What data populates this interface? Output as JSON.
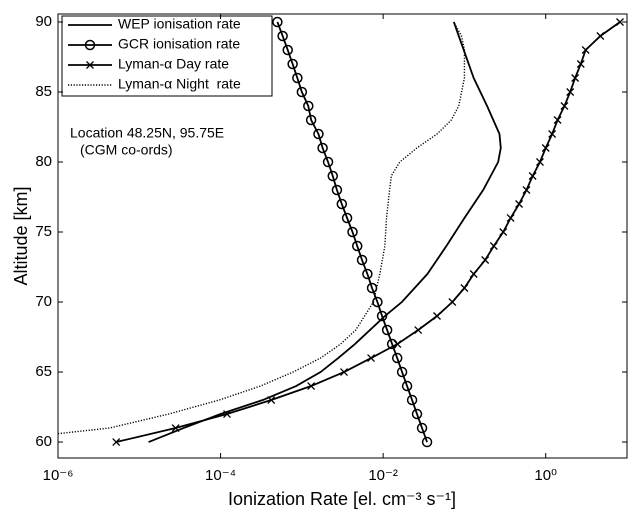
{
  "chart_data": {
    "type": "line",
    "x_label": "Ionization Rate [el. cm⁻³ s⁻¹]",
    "y_label": "Altitude [km]",
    "annotations": [
      "Location 48.25N, 95.75E",
      "(CGM co-ords)"
    ],
    "xscale": "log",
    "xlim": [
      1e-06,
      10
    ],
    "xticks": [
      {
        "value": 1e-06,
        "label": "10⁻⁶"
      },
      {
        "value": 0.0001,
        "label": "10⁻⁴"
      },
      {
        "value": 0.01,
        "label": "10⁻²"
      },
      {
        "value": 1,
        "label": "10⁰"
      }
    ],
    "ylim": [
      58.86,
      90.57
    ],
    "yticks": [
      60,
      65,
      70,
      75,
      80,
      85,
      90
    ],
    "grid": false,
    "legend": "upper-left",
    "series": [
      {
        "name": "WEP ionisation rate",
        "color": "#000000",
        "marker": "none",
        "dash": "solid",
        "x": [
          1.3e-05,
          3.5e-05,
          0.0001,
          0.00033,
          0.00085,
          0.0017,
          0.0028,
          0.0045,
          0.0105,
          0.017,
          0.035,
          0.06,
          0.1,
          0.17,
          0.26,
          0.28,
          0.27,
          0.19,
          0.13,
          0.098,
          0.074
        ],
        "y": [
          60,
          61,
          62,
          63,
          64,
          65,
          66,
          67,
          69,
          70,
          72,
          74,
          76,
          78,
          80,
          81,
          82,
          84,
          86,
          88,
          90
        ]
      },
      {
        "name": "GCR ionisation rate",
        "color": "#000000",
        "marker": "circle",
        "dash": "solid",
        "x": [
          0.0347,
          0.0301,
          0.0261,
          0.0227,
          0.0197,
          0.0171,
          0.0149,
          0.0129,
          0.0112,
          0.0097,
          0.0085,
          0.0073,
          0.0064,
          0.0055,
          0.0048,
          0.0042,
          0.0036,
          0.0031,
          0.0027,
          0.0024,
          0.0021,
          0.0018,
          0.0016,
          0.0013,
          0.0012,
          0.001,
          0.00088,
          0.00077,
          0.00067,
          0.00058,
          0.0005
        ],
        "y": [
          60,
          61,
          62,
          63,
          64,
          65,
          66,
          67,
          68,
          69,
          70,
          71,
          72,
          73,
          74,
          75,
          76,
          77,
          78,
          79,
          80,
          81,
          82,
          83,
          84,
          85,
          86,
          87,
          88,
          89,
          90
        ]
      },
      {
        "name": "Lyman-α Day rate",
        "color": "#000000",
        "marker": "x",
        "dash": "solid",
        "x": [
          5.2e-06,
          2.8e-05,
          0.00012,
          0.00042,
          0.0013,
          0.0033,
          0.0071,
          0.015,
          0.027,
          0.046,
          0.071,
          0.1,
          0.13,
          0.18,
          0.23,
          0.3,
          0.37,
          0.47,
          0.58,
          0.69,
          0.85,
          1.0,
          1.2,
          1.4,
          1.7,
          2.0,
          2.3,
          2.7,
          3.1,
          4.7,
          8.2
        ],
        "y": [
          60,
          61,
          62,
          63,
          64,
          65,
          66,
          67,
          68,
          69,
          70,
          71,
          72,
          73,
          74,
          75,
          76,
          77,
          78,
          79,
          80,
          81,
          82,
          83,
          84,
          85,
          86,
          87,
          88,
          89,
          90
        ]
      },
      {
        "name": "Lyman-α Night  rate",
        "color": "#000000",
        "marker": "none",
        "dash": "dotted",
        "x": [
          1e-06,
          4.3e-06,
          2.3e-05,
          9.6e-05,
          0.00031,
          0.00078,
          0.0017,
          0.003,
          0.0046,
          0.0076,
          0.0091,
          0.0105,
          0.011,
          0.012,
          0.0126,
          0.016,
          0.026,
          0.046,
          0.069,
          0.085,
          0.1,
          0.1,
          0.092,
          0.074
        ],
        "y": [
          60.6,
          61,
          62,
          63,
          64,
          65,
          66,
          67,
          68,
          70,
          72,
          74,
          76,
          78,
          79,
          80,
          81,
          82,
          83,
          84,
          86,
          88,
          89,
          90
        ]
      }
    ]
  }
}
